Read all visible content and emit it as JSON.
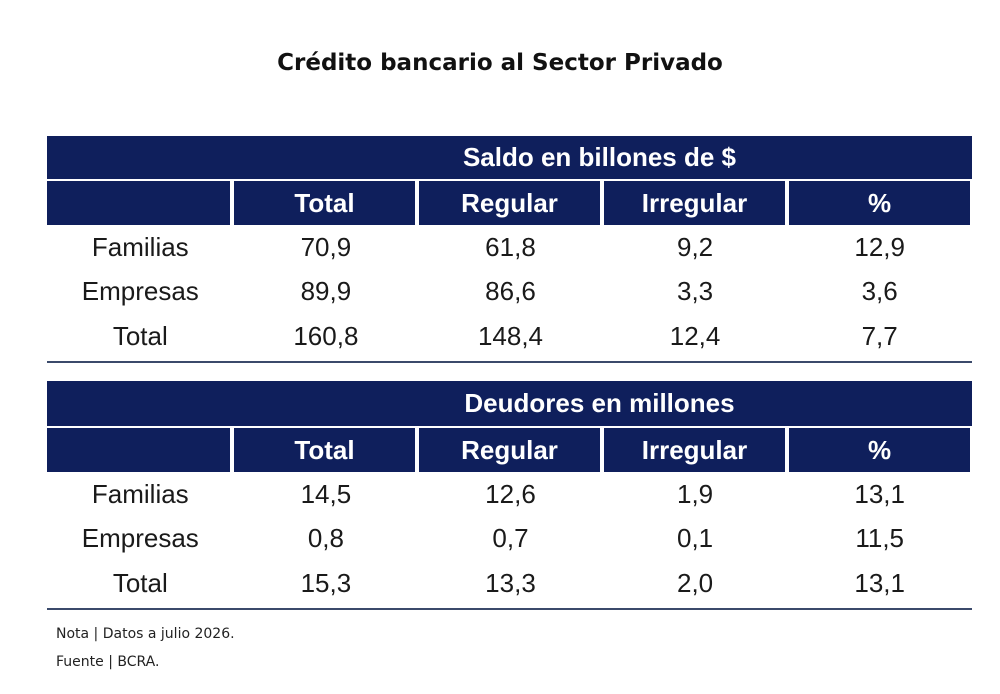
{
  "chart_data": {
    "type": "table",
    "title": "Crédito bancario al Sector Privado",
    "tables": [
      {
        "heading": "Saldo en billones de $",
        "columns": [
          "Total",
          "Regular",
          "Irregular",
          "%"
        ],
        "rows": [
          {
            "label": "Familias",
            "values": [
              "70,9",
              "61,8",
              "9,2",
              "12,9"
            ]
          },
          {
            "label": "Empresas",
            "values": [
              "89,9",
              "86,6",
              "3,3",
              "3,6"
            ]
          },
          {
            "label": "Total",
            "values": [
              "160,8",
              "148,4",
              "12,4",
              "7,7"
            ]
          }
        ]
      },
      {
        "heading": "Deudores en millones",
        "columns": [
          "Total",
          "Regular",
          "Irregular",
          "%"
        ],
        "rows": [
          {
            "label": "Familias",
            "values": [
              "14,5",
              "12,6",
              "1,9",
              "13,1"
            ]
          },
          {
            "label": "Empresas",
            "values": [
              "0,8",
              "0,7",
              "0,1",
              "11,5"
            ]
          },
          {
            "label": "Total",
            "values": [
              "15,3",
              "13,3",
              "2,0",
              "13,1"
            ]
          }
        ]
      }
    ],
    "notes": [
      "Nota | Datos a julio 2026.",
      "Fuente | BCRA."
    ]
  },
  "colors": {
    "header_bg": "#0f1f5c",
    "header_text": "#ffffff",
    "rule": "#3b4a6b"
  }
}
